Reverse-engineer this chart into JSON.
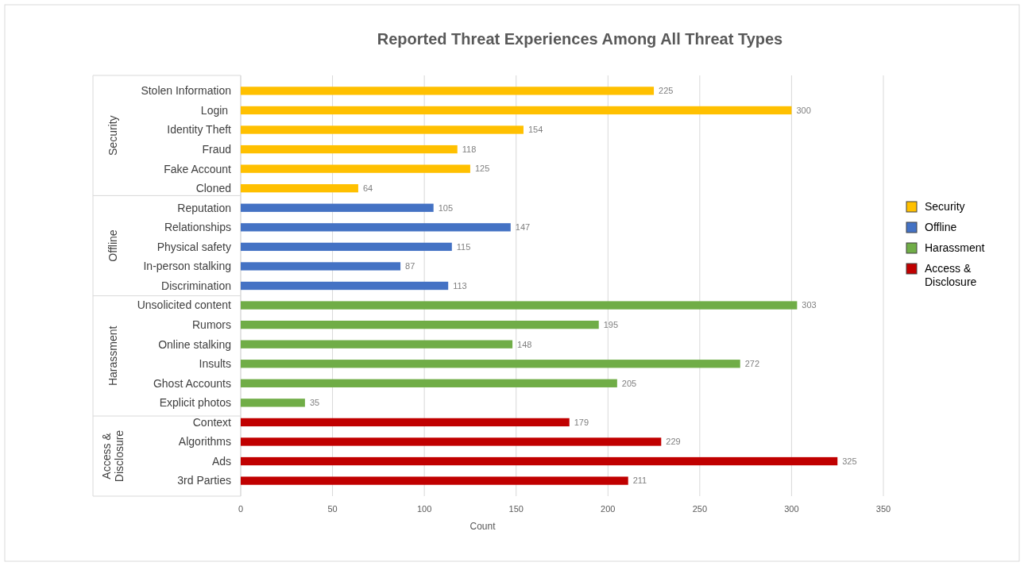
{
  "chart_data": {
    "type": "bar",
    "orientation": "horizontal",
    "title": "Reported Threat Experiences Among All Threat Types",
    "xlabel": "Count",
    "categories": [
      "Stolen Information",
      "Login ",
      "Identity Theft",
      "Fraud",
      "Fake Account",
      "Cloned",
      "Reputation",
      "Relationships",
      "Physical safety",
      "In-person stalking",
      "Discrimination",
      "Unsolicited content",
      "Rumors",
      "Online stalking",
      "Insults",
      "Ghost Accounts",
      "Explicit photos",
      "Context",
      "Algorithms",
      "Ads",
      "3rd Parties"
    ],
    "series": [
      {
        "name": "Security",
        "color": "#ffc000",
        "values": [
          225,
          300,
          154,
          118,
          125,
          64,
          null,
          null,
          null,
          null,
          null,
          null,
          null,
          null,
          null,
          null,
          null,
          null,
          null,
          null,
          null
        ]
      },
      {
        "name": "Offline",
        "color": "#4472c4",
        "values": [
          null,
          null,
          null,
          null,
          null,
          null,
          105,
          147,
          115,
          87,
          113,
          null,
          null,
          null,
          null,
          null,
          null,
          null,
          null,
          null,
          null
        ]
      },
      {
        "name": "Harassment",
        "color": "#70ad47",
        "values": [
          null,
          null,
          null,
          null,
          null,
          null,
          null,
          null,
          null,
          null,
          null,
          303,
          195,
          148,
          272,
          205,
          35,
          null,
          null,
          null,
          null
        ]
      },
      {
        "name": "Access & Disclosure",
        "color": "#c00000",
        "values": [
          null,
          null,
          null,
          null,
          null,
          null,
          null,
          null,
          null,
          null,
          null,
          null,
          null,
          null,
          null,
          null,
          null,
          179,
          229,
          325,
          211
        ]
      }
    ],
    "xlim": [
      0,
      350
    ],
    "xticks": [
      0,
      50,
      100,
      150,
      200,
      250,
      300,
      350
    ],
    "grid": "x",
    "legend": "right",
    "data_labels": true
  }
}
